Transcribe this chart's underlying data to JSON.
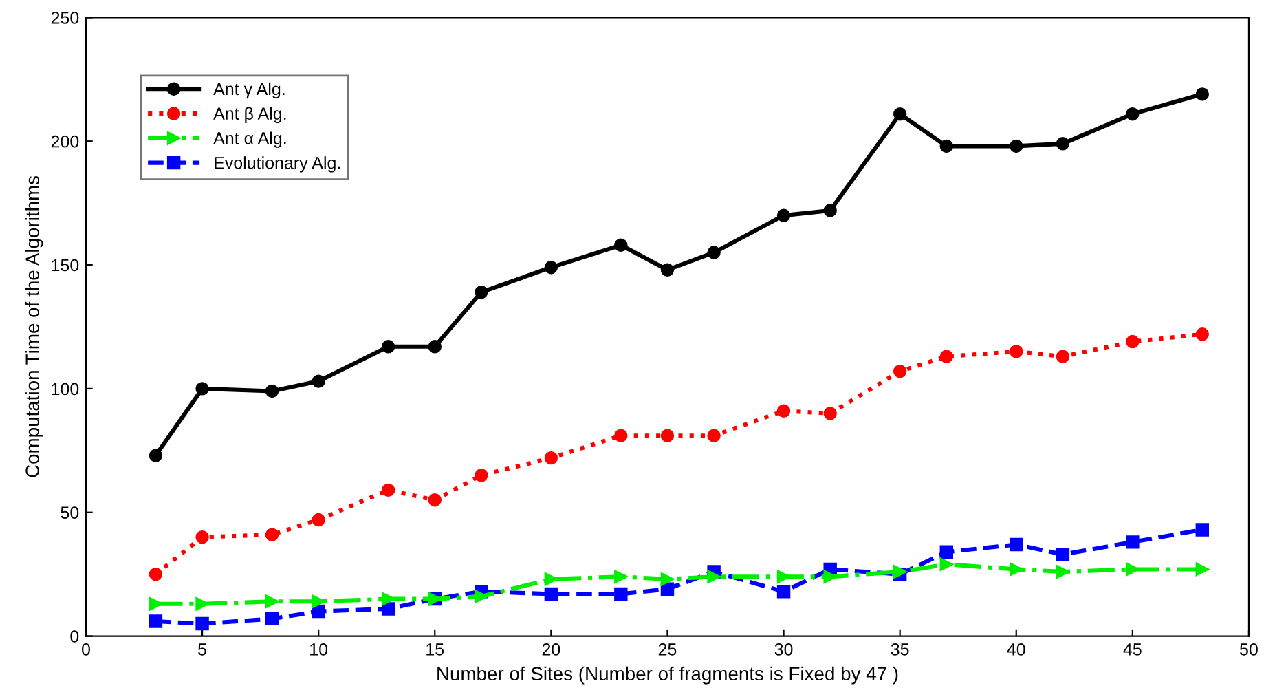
{
  "chart_data": {
    "type": "line",
    "xlabel": "Number of Sites (Number of fragments is Fixed by 47 )",
    "ylabel": "Computation Time of the Algorithms",
    "x": [
      3,
      5,
      8,
      10,
      13,
      15,
      17,
      20,
      23,
      25,
      27,
      30,
      32,
      35,
      37,
      40,
      42,
      45,
      48
    ],
    "xlim": [
      0,
      50
    ],
    "xticks": [
      0,
      5,
      10,
      15,
      20,
      25,
      30,
      35,
      40,
      45,
      50
    ],
    "ylim": [
      0,
      250
    ],
    "yticks": [
      0,
      50,
      100,
      150,
      200,
      250
    ],
    "grid": false,
    "legend": "top left",
    "series": [
      {
        "name": "Ant γ Alg.",
        "color": "#000000",
        "marker": "circle",
        "line_style": "solid",
        "values": [
          73,
          100,
          99,
          103,
          117,
          117,
          139,
          149,
          158,
          148,
          155,
          170,
          172,
          211,
          198,
          198,
          199,
          211,
          219
        ]
      },
      {
        "name": "Ant β Alg.",
        "color": "#ff0000",
        "marker": "circle",
        "line_style": "dotted",
        "values": [
          25,
          40,
          41,
          47,
          59,
          55,
          65,
          72,
          81,
          81,
          81,
          91,
          90,
          107,
          113,
          115,
          113,
          119,
          122
        ]
      },
      {
        "name": "Ant α Alg.",
        "color": "#00ee00",
        "marker": "triangle",
        "line_style": "dashdot",
        "values": [
          13,
          13,
          14,
          14,
          15,
          15,
          16,
          23,
          24,
          23,
          24,
          24,
          24,
          26,
          29,
          27,
          26,
          27,
          27
        ]
      },
      {
        "name": "Evolutionary Alg.",
        "color": "#0000ff",
        "marker": "square",
        "line_style": "dashed",
        "values": [
          6,
          5,
          7,
          10,
          11,
          15,
          18,
          17,
          17,
          19,
          26,
          18,
          27,
          25,
          34,
          37,
          33,
          38,
          43
        ]
      }
    ]
  }
}
